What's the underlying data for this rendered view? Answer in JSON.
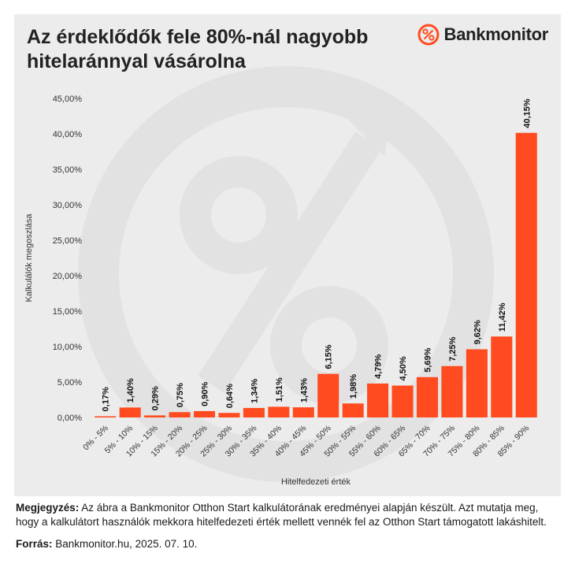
{
  "header": {
    "title": "Az érdeklődők fele 80%-nál nagyobb hitelaránnyal vásárolna",
    "brand": "Bankmonitor"
  },
  "colors": {
    "bar": "#ff4b1f",
    "background": "#ececec",
    "watermark": "#e2e2e2",
    "brand_accent": "#ff4b1f"
  },
  "chart_data": {
    "type": "bar",
    "title": "Az érdeklődők fele 80%-nál nagyobb hitelaránnyal vásárolna",
    "xlabel": "Hitelfedezeti érték",
    "ylabel": "Kalkulálók megoszlása",
    "ylim": [
      0,
      45
    ],
    "yticks": [
      0,
      5,
      10,
      15,
      20,
      25,
      30,
      35,
      40,
      45
    ],
    "ytick_labels": [
      "0,00%",
      "5,00%",
      "10,00%",
      "15,00%",
      "20,00%",
      "25,00%",
      "30,00%",
      "35,00%",
      "40,00%",
      "45,00%"
    ],
    "grid": false,
    "categories": [
      "0% - 5%",
      "5% - 10%",
      "10% - 15%",
      "15% - 20%",
      "20% - 25%",
      "25% - 30%",
      "30% - 35%",
      "35% - 40%",
      "40% - 45%",
      "45% - 50%",
      "50% - 55%",
      "55% - 60%",
      "60% - 65%",
      "65% - 70%",
      "70% - 75%",
      "75% - 80%",
      "80% - 85%",
      "85% - 90%"
    ],
    "values": [
      0.17,
      1.4,
      0.29,
      0.75,
      0.9,
      0.64,
      1.34,
      1.51,
      1.43,
      6.15,
      1.98,
      4.79,
      4.5,
      5.69,
      7.25,
      9.62,
      11.42,
      40.15
    ],
    "value_labels": [
      "0,17%",
      "1,40%",
      "0,29%",
      "0,75%",
      "0,90%",
      "0,64%",
      "1,34%",
      "1,51%",
      "1,43%",
      "6,15%",
      "1,98%",
      "4,79%",
      "4,50%",
      "5,69%",
      "7,25%",
      "9,62%",
      "11,42%",
      "40,15%"
    ]
  },
  "footer": {
    "note_label": "Megjegyzés:",
    "note_text": " Az ábra a Bankmonitor Otthon Start kalkulátorának eredményei alapján készült. Azt mutatja meg, hogy a kalkulátort használók mekkora hitelfedezeti érték mellett vennék fel az Otthon Start támogatott lakáshitelt.",
    "source_label": "Forrás:",
    "source_text": " Bankmonitor.hu, 2025. 07. 10."
  }
}
